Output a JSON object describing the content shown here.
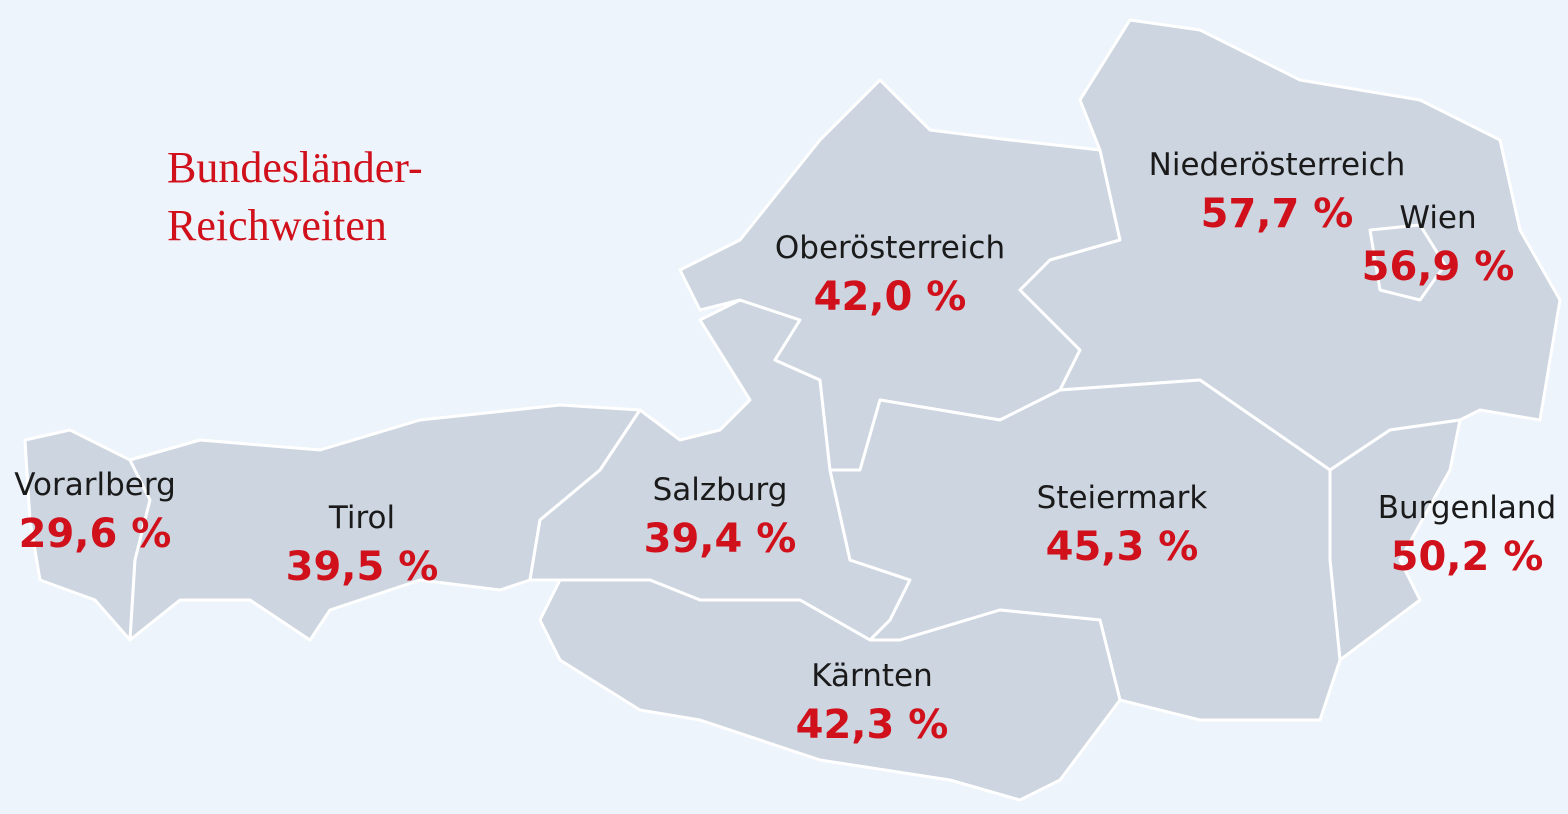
{
  "title_lines": [
    "Bundesländer-",
    "Reichweiten"
  ],
  "regions": [
    {
      "name": "Vorarlberg",
      "share": "29,6 %"
    },
    {
      "name": "Tirol",
      "share": "39,5 %"
    },
    {
      "name": "Salzburg",
      "share": "39,4 %"
    },
    {
      "name": "Oberösterreich",
      "share": "42,0 %"
    },
    {
      "name": "Kärnten",
      "share": "42,3 %"
    },
    {
      "name": "Steiermark",
      "share": "45,3 %"
    },
    {
      "name": "Niederösterreich",
      "share": "57,7 %"
    },
    {
      "name": "Wien",
      "share": "56,9 %"
    },
    {
      "name": "Burgenland",
      "share": "50,2 %"
    }
  ]
}
